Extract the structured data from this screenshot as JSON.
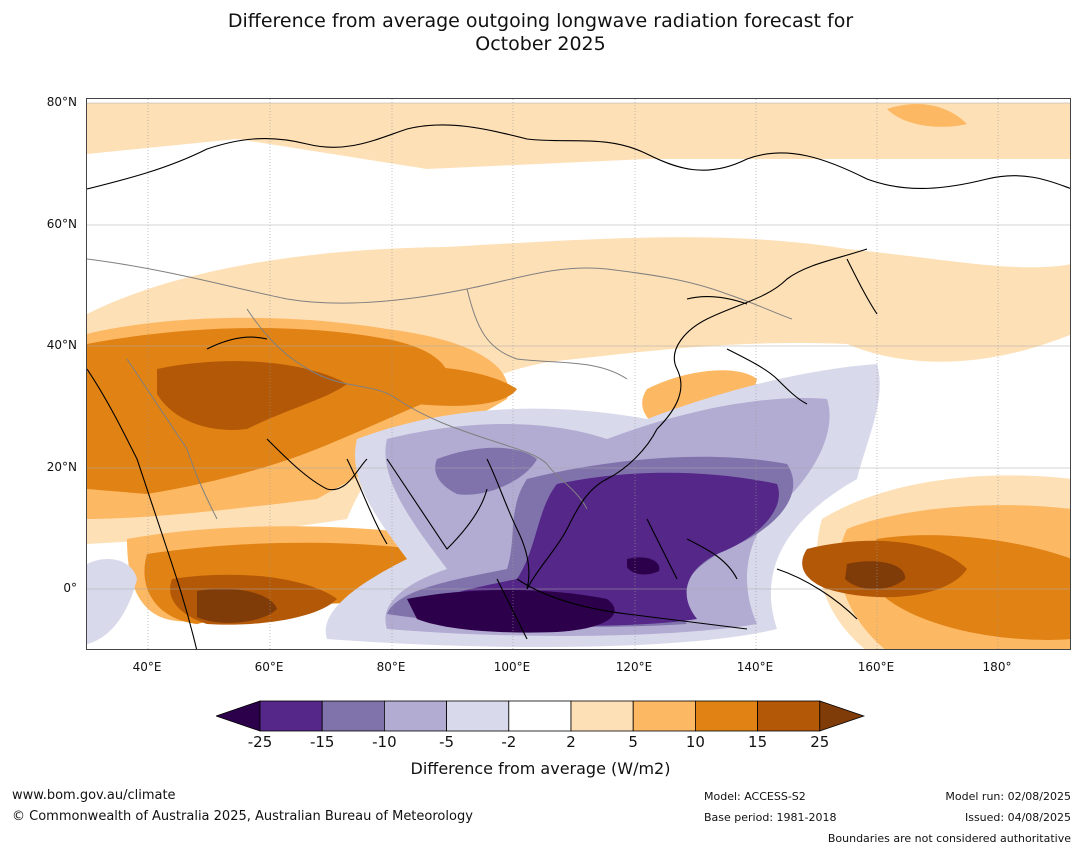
{
  "title_line1": "Difference from average outgoing longwave radiation forecast for",
  "title_line2": "October 2025",
  "map": {
    "lat_labels": [
      "80°N",
      "60°N",
      "40°N",
      "20°N",
      "0°"
    ],
    "lon_labels": [
      "40°E",
      "60°E",
      "80°E",
      "100°E",
      "120°E",
      "140°E",
      "160°E",
      "180°"
    ],
    "colors": {
      "neg25": "#2d004b",
      "neg15": "#542788",
      "neg10": "#8073ac",
      "neg5": "#b2abd2",
      "neg2": "#d8daeb",
      "zero": "#ffffff",
      "pos2": "#fee0b6",
      "pos5": "#fdb863",
      "pos10": "#e08214",
      "pos15": "#b35806",
      "pos25": "#7f3b08",
      "coast": "#000000",
      "border": "#808080",
      "grid": "#999999"
    }
  },
  "colorbar": {
    "ticks": [
      "-25",
      "-15",
      "-10",
      "-5",
      "-2",
      "2",
      "5",
      "10",
      "15",
      "25"
    ],
    "colors": [
      "#2d004b",
      "#542788",
      "#8073ac",
      "#b2abd2",
      "#d8daeb",
      "#ffffff",
      "#fee0b6",
      "#fdb863",
      "#e08214",
      "#b35806",
      "#7f3b08"
    ],
    "label": "Difference from average (W/m2)"
  },
  "footer": {
    "website": "www.bom.gov.au/climate",
    "copyright": "© Commonwealth of Australia 2025, Australian Bureau of Meteorology",
    "model": "Model: ACCESS-S2",
    "base_period": "Base period: 1981-2018",
    "model_run": "Model run: 02/08/2025",
    "issued": "Issued: 04/08/2025",
    "disclaimer": "Boundaries are not considered authoritative"
  }
}
